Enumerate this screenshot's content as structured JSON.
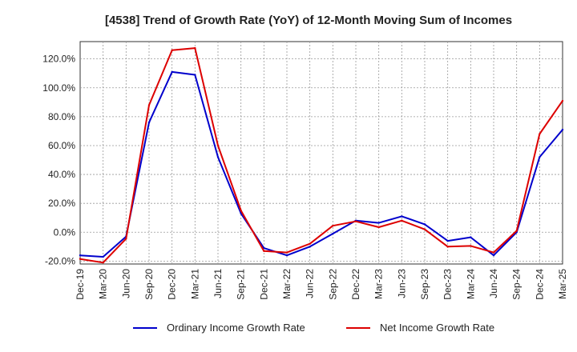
{
  "chart_data": {
    "type": "line",
    "title": "[4538]  Trend of Growth Rate (YoY) of 12-Month Moving Sum of Incomes",
    "xlabel": "",
    "ylabel": "",
    "ylim": [
      -22,
      132
    ],
    "ytick_values": [
      -20,
      0,
      20,
      40,
      60,
      80,
      100,
      120
    ],
    "ytick_labels": [
      "-20.0%",
      "0.0%",
      "20.0%",
      "40.0%",
      "60.0%",
      "80.0%",
      "100.0%",
      "120.0%"
    ],
    "x_labels": [
      "Dec-19",
      "Mar-20",
      "Jun-20",
      "Sep-20",
      "Dec-20",
      "Mar-21",
      "Jun-21",
      "Sep-21",
      "Dec-21",
      "Mar-22",
      "Jun-22",
      "Sep-22",
      "Dec-22",
      "Mar-23",
      "Jun-23",
      "Sep-23",
      "Dec-23",
      "Mar-24",
      "Jun-24",
      "Sep-24",
      "Dec-24",
      "Mar-25"
    ],
    "grid": true,
    "legend_position": "bottom",
    "series": [
      {
        "name": "Ordinary Income Growth Rate",
        "color": "#0000cc",
        "values": [
          -16,
          -17,
          -3,
          76,
          111,
          109,
          52,
          13,
          -11,
          -16,
          -10,
          -1,
          8,
          6.5,
          11,
          5.5,
          -6,
          -3.5,
          -16,
          0,
          52,
          71
        ]
      },
      {
        "name": "Net Income Growth Rate",
        "color": "#dd0000",
        "values": [
          -18.5,
          -21,
          -4.5,
          88,
          126,
          127.5,
          60,
          15,
          -13,
          -14,
          -8,
          4.5,
          7.5,
          3.5,
          8,
          2,
          -10,
          -9.5,
          -14,
          1,
          68,
          91
        ]
      }
    ]
  }
}
